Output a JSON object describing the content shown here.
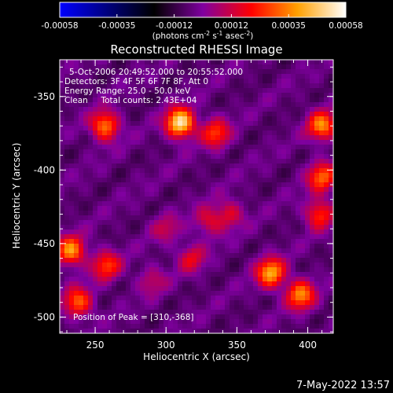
{
  "colorbar": {
    "tick_labels": [
      "-0.00058",
      "-0.00035",
      "-0.00012",
      "0.00012",
      "0.00035",
      "0.00058"
    ],
    "range": [
      -0.00058,
      0.00058
    ],
    "units_main": "(photons cm",
    "units_exp1": "-2",
    "units_mid": " s",
    "units_exp2": "-1",
    "units_end": " asec",
    "units_exp3": "-2",
    "units_close": ")"
  },
  "image": {
    "title": "Reconstructed RHESSI Image",
    "info_lines": [
      "5-Oct-2006 20:49:52.000 to 20:55:52.000",
      "Detectors: 3F 4F 5F 6F 7F 8F, Att 0",
      "Energy Range: 25.0 - 50.0 keV",
      "Clean     Total counts: 2.43E+04"
    ],
    "peak_label": "Position of Peak = [310,-368]",
    "timestamp": "7-May-2022 13:57"
  },
  "chart_data": {
    "type": "heatmap",
    "title": "Reconstructed RHESSI Image",
    "xlabel": "Heliocentric X (arcsec)",
    "ylabel": "Heliocentric Y (arcsec)",
    "xlim": [
      225,
      418
    ],
    "ylim": [
      -511,
      -325
    ],
    "xticks": [
      "250",
      "300",
      "350",
      "400"
    ],
    "yticks": [
      "-350",
      "-400",
      "-450",
      "-500"
    ],
    "colorscale": [
      "#0000ff",
      "#000000",
      "#8000a0",
      "#ff0000",
      "#ffa000",
      "#ffffff"
    ],
    "value_range": [
      -0.00058,
      0.00058
    ],
    "peak_position": [
      310,
      -368
    ],
    "sources": [
      {
        "x": 310,
        "y": -368,
        "intensity": 0.00058
      },
      {
        "x": 257,
        "y": -370,
        "intensity": 0.0004
      },
      {
        "x": 233,
        "y": -455,
        "intensity": 0.00042
      },
      {
        "x": 238,
        "y": -490,
        "intensity": 0.00035
      },
      {
        "x": 258,
        "y": -465,
        "intensity": 0.0003
      },
      {
        "x": 335,
        "y": -375,
        "intensity": 0.0003
      },
      {
        "x": 410,
        "y": -370,
        "intensity": 0.0004
      },
      {
        "x": 410,
        "y": -405,
        "intensity": 0.00035
      },
      {
        "x": 374,
        "y": -470,
        "intensity": 0.00045
      },
      {
        "x": 395,
        "y": -485,
        "intensity": 0.0004
      },
      {
        "x": 408,
        "y": -430,
        "intensity": 0.0003
      },
      {
        "x": 330,
        "y": -435,
        "intensity": 0.0002
      },
      {
        "x": 345,
        "y": -430,
        "intensity": 0.0002
      },
      {
        "x": 290,
        "y": -475,
        "intensity": 0.00015
      },
      {
        "x": 318,
        "y": -460,
        "intensity": 0.0002
      },
      {
        "x": 300,
        "y": -440,
        "intensity": 0.00015
      }
    ]
  }
}
